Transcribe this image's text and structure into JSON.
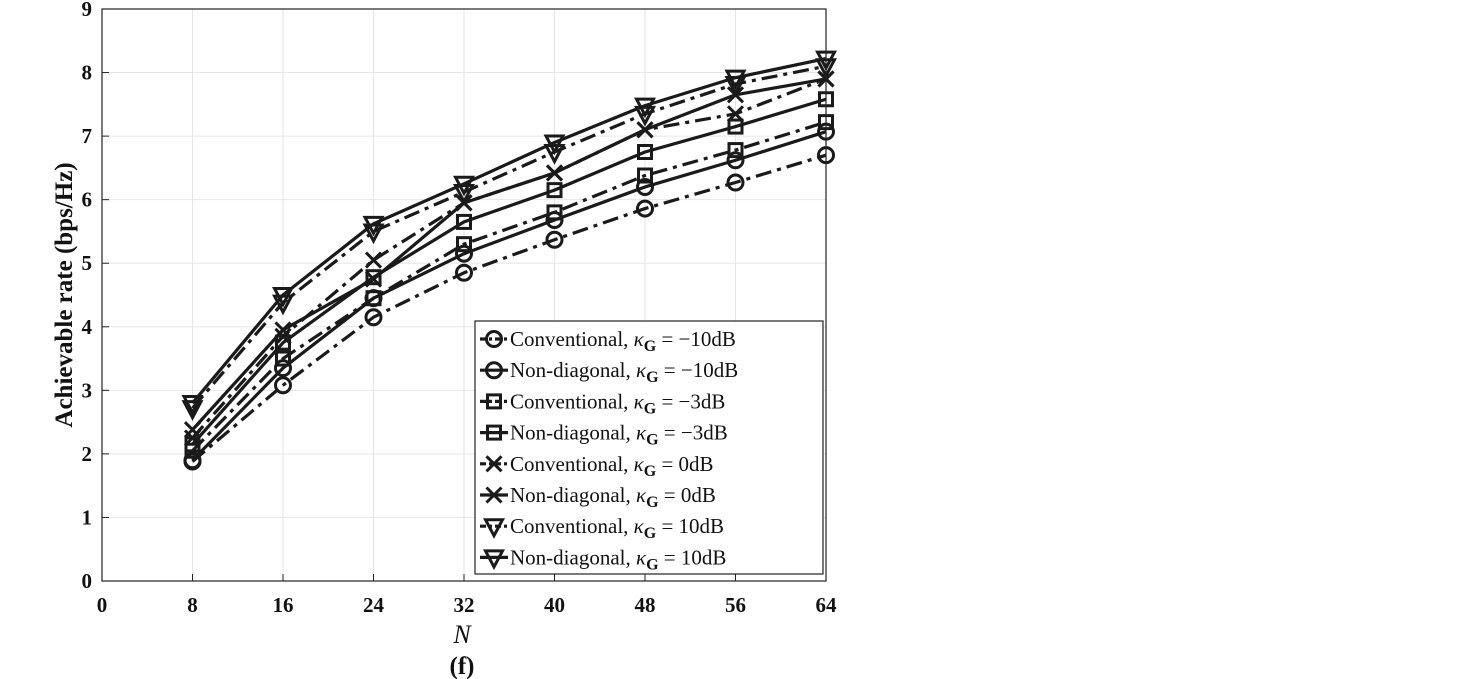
{
  "chart_data": {
    "type": "line",
    "title": "",
    "xlabel": "N",
    "ylabel": "Achievable rate (bps/Hz)",
    "panel_label": "(f)",
    "xlim": [
      0,
      64
    ],
    "ylim": [
      0,
      9
    ],
    "xticks": [
      0,
      8,
      16,
      24,
      32,
      40,
      48,
      56,
      64
    ],
    "yticks": [
      0,
      1,
      2,
      3,
      4,
      5,
      6,
      7,
      8,
      9
    ],
    "grid": true,
    "legend_position": "bottom-right",
    "x": [
      8,
      16,
      24,
      32,
      40,
      48,
      56,
      64
    ],
    "series": [
      {
        "label_prefix": "Conventional, ",
        "kappa_value": " = −10dB",
        "marker": "circle",
        "dash": "dashdot",
        "values": [
          1.88,
          3.08,
          4.15,
          4.85,
          5.37,
          5.86,
          6.27,
          6.7
        ]
      },
      {
        "label_prefix": "Non-diagonal, ",
        "kappa_value": " = −10dB",
        "marker": "circle",
        "dash": "solid",
        "values": [
          1.9,
          3.35,
          4.45,
          5.15,
          5.68,
          6.2,
          6.62,
          7.07
        ]
      },
      {
        "label_prefix": "Conventional, ",
        "kappa_value": " = −3dB",
        "marker": "square",
        "dash": "dashdot",
        "values": [
          2.05,
          3.5,
          4.45,
          5.3,
          5.8,
          6.38,
          6.78,
          7.22
        ]
      },
      {
        "label_prefix": "Non-diagonal, ",
        "kappa_value": " = −3dB",
        "marker": "square",
        "dash": "solid",
        "values": [
          2.15,
          3.75,
          4.78,
          5.65,
          6.15,
          6.75,
          7.15,
          7.58
        ]
      },
      {
        "label_prefix": "Conventional, ",
        "kappa_value": " = 0dB",
        "marker": "x",
        "dash": "dashdot",
        "values": [
          2.25,
          3.85,
          5.05,
          5.95,
          6.42,
          7.1,
          7.35,
          7.9
        ]
      },
      {
        "label_prefix": "Non-diagonal, ",
        "kappa_value": " = 0dB",
        "marker": "x",
        "dash": "solid",
        "values": [
          2.38,
          3.95,
          4.75,
          5.95,
          6.42,
          7.1,
          7.65,
          7.9
        ]
      },
      {
        "label_prefix": "Conventional, ",
        "kappa_value": " = 10dB",
        "marker": "triangle-down",
        "dash": "dashdot",
        "values": [
          2.72,
          4.38,
          5.5,
          6.12,
          6.75,
          7.35,
          7.82,
          8.1
        ]
      },
      {
        "label_prefix": "Non-diagonal, ",
        "kappa_value": " = 10dB",
        "marker": "triangle-down",
        "dash": "solid",
        "values": [
          2.8,
          4.5,
          5.62,
          6.25,
          6.9,
          7.48,
          7.92,
          8.22
        ]
      }
    ],
    "kappa_symbol": "κ",
    "kappa_subscript": "G",
    "line_color": "#1a1a1a",
    "grid_color": "#e6e6e6"
  }
}
